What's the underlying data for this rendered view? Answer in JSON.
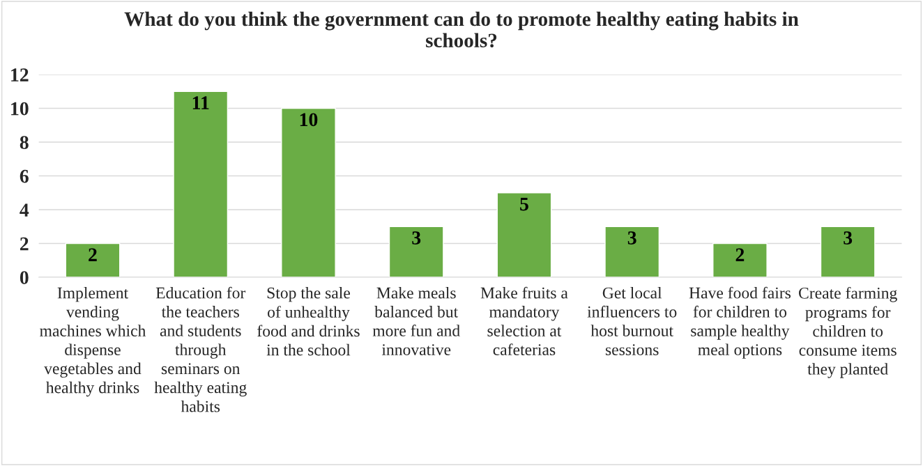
{
  "chart_data": {
    "type": "bar",
    "title": "What do you think the government can do to promote healthy eating habits in schools?",
    "categories": [
      "Implement vending machines which dispense vegetables and healthy drinks",
      "Education for the teachers and students through seminars on healthy eating habits",
      "Stop the sale of unhealthy food and drinks in the school",
      "Make meals balanced but more fun and innovative",
      "Make fruits a mandatory selection at cafeterias",
      "Get local influencers to host burnout sessions",
      "Have food fairs for children to sample healthy meal options",
      "Create farming programs for children to consume items they planted"
    ],
    "values": [
      2,
      11,
      10,
      3,
      5,
      3,
      2,
      3
    ],
    "color": "#6aad45",
    "ylim": [
      0,
      12
    ],
    "yticks": [
      0,
      2,
      4,
      6,
      8,
      10,
      12
    ],
    "grid": "y",
    "data_labels": true
  }
}
